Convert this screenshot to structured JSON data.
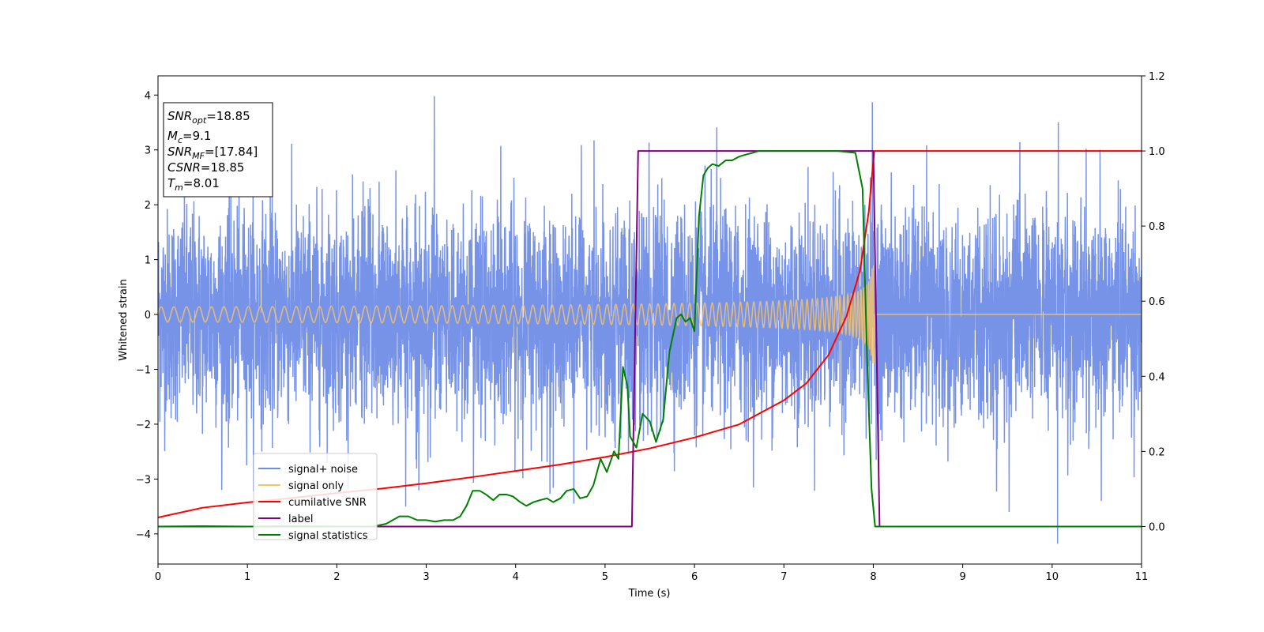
{
  "chart_data": {
    "type": "line",
    "title": "",
    "xlabel": "Time (s)",
    "ylabel": "Whitened strain",
    "xlim": [
      0,
      11
    ],
    "ylim_left": [
      -4.55,
      4.35
    ],
    "ylim_right": [
      -0.1,
      1.2
    ],
    "xticks": [
      "0",
      "1",
      "2",
      "3",
      "4",
      "5",
      "6",
      "7",
      "8",
      "9",
      "10",
      "11"
    ],
    "yticks_left": [
      "4",
      "3",
      "2",
      "1",
      "0",
      "−1",
      "−2",
      "−3",
      "−4"
    ],
    "yticks_right": [
      "1.2",
      "1.0",
      "0.8",
      "0.6",
      "0.4",
      "0.2",
      "0.0"
    ],
    "grid": false,
    "legend_position": "lower-left",
    "annotation": {
      "lines": [
        {
          "sym": "SNR",
          "sub": "opt",
          "value": "=18.85"
        },
        {
          "sym": "M",
          "sub": "c",
          "value": "=9.1"
        },
        {
          "sym": "SNR",
          "sub": "MF",
          "value": "=[17.84]"
        },
        {
          "sym": "CSNR",
          "sub": "",
          "value": "=18.85"
        },
        {
          "sym": "T",
          "sub": "m",
          "value": "=8.01"
        }
      ]
    },
    "series": [
      {
        "name": "signal+ noise",
        "axis": "left",
        "color": "#6b8ae6",
        "kind": "noise",
        "std": 0.95,
        "spikes": [
          [
            3.09,
            3.98
          ],
          [
            6.25,
            3.41
          ],
          [
            7.99,
            3.87
          ],
          [
            10.07,
            3.5
          ],
          [
            10.06,
            -4.18
          ],
          [
            4.65,
            -3.45
          ],
          [
            2.77,
            -3.5
          ],
          [
            9.52,
            -3.6
          ],
          [
            10.55,
            -3.4
          ]
        ]
      },
      {
        "name": "signal only",
        "axis": "left",
        "color": "#f5c36b",
        "kind": "chirp",
        "t_merge": 8.01,
        "a0": 0.12,
        "a_peak": 1.1
      },
      {
        "name": "cumilative SNR",
        "axis": "right",
        "color": "#ff0000",
        "kind": "cumulative",
        "t": [
          0,
          0.5,
          1,
          1.5,
          2,
          2.5,
          3,
          3.5,
          4,
          4.5,
          5,
          5.5,
          6,
          6.5,
          7,
          7.25,
          7.5,
          7.7,
          7.85,
          7.95,
          8.01,
          11
        ],
        "y": [
          0.024,
          0.05,
          0.064,
          0.076,
          0.089,
          0.101,
          0.115,
          0.131,
          0.148,
          0.165,
          0.185,
          0.208,
          0.237,
          0.272,
          0.336,
          0.381,
          0.457,
          0.56,
          0.68,
          0.84,
          1.0,
          1.0
        ]
      },
      {
        "name": "label",
        "axis": "right",
        "color": "#800080",
        "kind": "step",
        "t": [
          0,
          5.3,
          5.37,
          8.0,
          8.07,
          11
        ],
        "y": [
          0,
          0,
          1,
          1,
          0,
          0
        ]
      },
      {
        "name": "signal statistics",
        "axis": "right",
        "color": "#008000",
        "kind": "line",
        "t": [
          0,
          0.5,
          1,
          1.5,
          2,
          2.2,
          2.4,
          2.55,
          2.7,
          2.8,
          2.9,
          3.0,
          3.1,
          3.2,
          3.3,
          3.38,
          3.45,
          3.52,
          3.6,
          3.67,
          3.75,
          3.82,
          3.9,
          3.97,
          4.05,
          4.12,
          4.2,
          4.27,
          4.35,
          4.42,
          4.5,
          4.57,
          4.65,
          4.72,
          4.8,
          4.87,
          4.95,
          5.02,
          5.1,
          5.15,
          5.2,
          5.25,
          5.28,
          5.35,
          5.42,
          5.5,
          5.57,
          5.65,
          5.72,
          5.8,
          5.85,
          5.9,
          5.95,
          6.0,
          6.05,
          6.1,
          6.15,
          6.2,
          6.27,
          6.35,
          6.42,
          6.5,
          6.57,
          6.65,
          6.72,
          6.8,
          7.0,
          7.2,
          7.4,
          7.6,
          7.8,
          7.88,
          7.93,
          7.98,
          8.02,
          8.06,
          8.1,
          11
        ],
        "y": [
          0.0,
          0.001,
          0.0,
          0.001,
          0.0,
          0.0,
          0.0,
          0.007,
          0.027,
          0.027,
          0.017,
          0.017,
          0.013,
          0.017,
          0.017,
          0.027,
          0.055,
          0.095,
          0.095,
          0.085,
          0.07,
          0.085,
          0.085,
          0.08,
          0.065,
          0.055,
          0.065,
          0.07,
          0.075,
          0.065,
          0.075,
          0.095,
          0.1,
          0.075,
          0.08,
          0.11,
          0.18,
          0.145,
          0.2,
          0.18,
          0.425,
          0.375,
          0.24,
          0.21,
          0.3,
          0.28,
          0.225,
          0.285,
          0.465,
          0.555,
          0.565,
          0.545,
          0.555,
          0.52,
          0.825,
          0.935,
          0.955,
          0.965,
          0.96,
          0.975,
          0.975,
          0.985,
          0.99,
          0.995,
          1.0,
          1.0,
          1.0,
          1.0,
          1.0,
          1.0,
          0.995,
          0.9,
          0.45,
          0.1,
          0.0,
          0.0,
          0.0,
          0.0
        ]
      }
    ]
  }
}
